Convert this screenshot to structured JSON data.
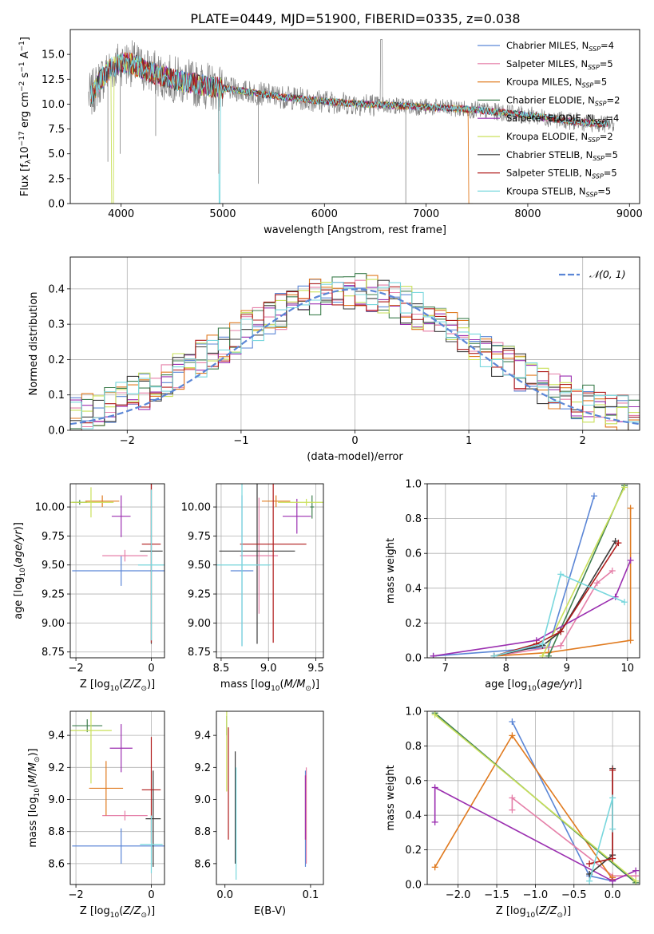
{
  "figure": {
    "title": "PLATE=0449, MJD=51900, FIBERID=0335, z=0.038"
  },
  "models": [
    {
      "name": "Chabrier MILES",
      "nssp": "4",
      "color": "#5b86d6"
    },
    {
      "name": "Salpeter MILES",
      "nssp": "5",
      "color": "#e57fa8"
    },
    {
      "name": "Kroupa MILES",
      "nssp": "5",
      "color": "#e07a1f"
    },
    {
      "name": "Chabrier ELODIE",
      "nssp": "2",
      "color": "#3f7f4f"
    },
    {
      "name": "Salpeter ELODIE",
      "nssp": "4",
      "color": "#9b2fb0"
    },
    {
      "name": "Kroupa ELODIE",
      "nssp": "2",
      "color": "#c9e05a"
    },
    {
      "name": "Chabrier STELIB",
      "nssp": "5",
      "color": "#3b3b3b"
    },
    {
      "name": "Salpeter STELIB",
      "nssp": "5",
      "color": "#b01c1c"
    },
    {
      "name": "Kroupa STELIB",
      "nssp": "5",
      "color": "#78d7dd"
    }
  ],
  "chart_data": [
    {
      "id": "spectrum",
      "type": "line",
      "xlabel": "wavelength [Angstrom, rest frame]",
      "ylabel_parts": [
        "Flux [f",
        "λ",
        "10",
        "−17",
        " erg cm",
        "−2",
        " s",
        "−1",
        " A",
        "−1",
        "]"
      ],
      "xlim": [
        3500,
        9100
      ],
      "ylim": [
        0,
        17.5
      ],
      "xticks": [
        4000,
        5000,
        6000,
        7000,
        8000,
        9000
      ],
      "yticks": [
        0.0,
        2.5,
        5.0,
        7.5,
        10.0,
        12.5,
        15.0
      ],
      "grid": false,
      "legend_position": "upper right",
      "continuum_x": [
        3700,
        3800,
        3900,
        4000,
        4100,
        4200,
        4400,
        4600,
        4800,
        5000,
        5200,
        5400,
        5600,
        5800,
        6000,
        6200,
        6400,
        6600,
        6800,
        7000,
        7200,
        7400,
        7600,
        7800,
        8000,
        8200,
        8400,
        8600,
        8800
      ],
      "continuum_y": [
        10.8,
        12.5,
        13.6,
        14.2,
        14.1,
        13.6,
        12.8,
        12.3,
        11.9,
        11.6,
        11.3,
        11.0,
        10.7,
        10.5,
        10.3,
        10.1,
        10.0,
        9.9,
        9.8,
        9.7,
        9.6,
        9.5,
        9.3,
        9.1,
        8.9,
        8.6,
        8.3,
        8.1,
        8.0
      ]
    },
    {
      "id": "residuals",
      "type": "histogram",
      "xlabel": "(data-model)/error",
      "ylabel": "Normed distribution",
      "xlim": [
        -2.5,
        2.5
      ],
      "ylim": [
        0,
        0.49
      ],
      "xticks": [
        -2,
        -1,
        0,
        1,
        2
      ],
      "yticks": [
        0.0,
        0.1,
        0.2,
        0.3,
        0.4
      ],
      "grid": true,
      "legend_label": "𝒩(0, 1)",
      "legend_position": "upper right",
      "reference_curve": "standard normal"
    },
    {
      "id": "age-vs-Z",
      "type": "errorbar",
      "xlabel": "Z [log10(Z/Z⊙)]",
      "ylabel": "age  [log10(age/yr)]",
      "xlim": [
        -2.15,
        0.35
      ],
      "ylim": [
        8.7,
        10.2
      ],
      "xticks": [
        -2,
        0
      ],
      "yticks": [
        8.75,
        9.0,
        9.25,
        9.5,
        9.75,
        10.0
      ],
      "grid": true,
      "points": [
        {
          "model": 0,
          "x": -0.8,
          "y": 9.45,
          "xerr": 1.3,
          "yerr": 0.13
        },
        {
          "model": 1,
          "x": -0.7,
          "y": 9.58,
          "xerr": 0.6,
          "yerr": 0.05
        },
        {
          "model": 2,
          "x": -1.3,
          "y": 10.05,
          "xerr": 0.45,
          "yerr": 0.05
        },
        {
          "model": 3,
          "x": -1.9,
          "y": 10.04,
          "xerr": 0.2,
          "yerr": 0.02
        },
        {
          "model": 4,
          "x": -0.8,
          "y": 9.92,
          "xerr": 0.25,
          "yerr": 0.18
        },
        {
          "model": 5,
          "x": -1.6,
          "y": 10.04,
          "xerr": 0.6,
          "yerr": 0.13
        },
        {
          "model": 6,
          "x": 0.0,
          "y": 9.62,
          "xerr": 0.3,
          "yerr": 0.8
        },
        {
          "model": 7,
          "x": 0.0,
          "y": 9.68,
          "xerr": 0.25,
          "yerr": 0.85
        },
        {
          "model": 8,
          "x": 0.0,
          "y": 9.5,
          "xerr": 0.35,
          "yerr": 0.65
        }
      ]
    },
    {
      "id": "age-vs-mass",
      "type": "errorbar",
      "xlabel": "mass [log10(M/M⊙)]",
      "xlim": [
        8.45,
        9.58
      ],
      "ylim": [
        8.7,
        10.2
      ],
      "xticks": [
        8.5,
        9.0,
        9.5
      ],
      "yticks": [
        8.75,
        9.0,
        9.25,
        9.5,
        9.75,
        10.0
      ],
      "grid": true,
      "points": [
        {
          "model": 0,
          "x": 8.72,
          "y": 9.45,
          "xerr": 0.12,
          "yerr": 0.65
        },
        {
          "model": 1,
          "x": 8.9,
          "y": 9.58,
          "xerr": 0.2,
          "yerr": 0.5
        },
        {
          "model": 2,
          "x": 9.08,
          "y": 10.05,
          "xerr": 0.15,
          "yerr": 0.05
        },
        {
          "model": 3,
          "x": 9.46,
          "y": 10.0,
          "xerr": 0.02,
          "yerr": 0.1
        },
        {
          "model": 4,
          "x": 9.3,
          "y": 9.92,
          "xerr": 0.15,
          "yerr": 0.15
        },
        {
          "model": 5,
          "x": 9.4,
          "y": 10.04,
          "xerr": 0.3,
          "yerr": 0.03
        },
        {
          "model": 6,
          "x": 8.88,
          "y": 9.62,
          "xerr": 0.4,
          "yerr": 0.8
        },
        {
          "model": 7,
          "x": 9.05,
          "y": 9.68,
          "xerr": 0.35,
          "yerr": 0.85
        },
        {
          "model": 8,
          "x": 8.72,
          "y": 9.5,
          "xerr": 0.3,
          "yerr": 0.7
        }
      ]
    },
    {
      "id": "weight-vs-age",
      "type": "line",
      "xlabel": "age  [log10(age/yr)]",
      "ylabel": "mass weight",
      "xlim": [
        6.7,
        10.2
      ],
      "ylim": [
        0,
        1.0
      ],
      "xticks": [
        7,
        8,
        9,
        10
      ],
      "yticks": [
        0.0,
        0.2,
        0.4,
        0.6,
        0.8,
        1.0
      ],
      "grid": true,
      "series": [
        {
          "model": 0,
          "x": [
            6.8,
            8.7,
            9.45
          ],
          "y": [
            0.01,
            0.06,
            0.93
          ]
        },
        {
          "model": 1,
          "x": [
            7.8,
            8.9,
            9.5,
            9.75
          ],
          "y": [
            0.01,
            0.07,
            0.43,
            0.5
          ]
        },
        {
          "model": 2,
          "x": [
            7.8,
            8.7,
            10.05,
            10.05
          ],
          "y": [
            0.01,
            0.03,
            0.1,
            0.86
          ]
        },
        {
          "model": 3,
          "x": [
            8.7,
            9.95
          ],
          "y": [
            0.01,
            0.99
          ]
        },
        {
          "model": 4,
          "x": [
            6.8,
            8.5,
            9.8,
            10.05
          ],
          "y": [
            0.01,
            0.1,
            0.35,
            0.56
          ]
        },
        {
          "model": 5,
          "x": [
            8.6,
            9.95
          ],
          "y": [
            0.01,
            0.98
          ]
        },
        {
          "model": 6,
          "x": [
            7.8,
            8.6,
            8.9,
            9.8
          ],
          "y": [
            0.01,
            0.07,
            0.15,
            0.67
          ]
        },
        {
          "model": 7,
          "x": [
            7.8,
            8.5,
            8.9,
            9.85
          ],
          "y": [
            0.01,
            0.08,
            0.15,
            0.66
          ]
        },
        {
          "model": 8,
          "x": [
            7.8,
            8.6,
            8.9,
            9.95
          ],
          "y": [
            0.01,
            0.08,
            0.48,
            0.32
          ]
        }
      ]
    },
    {
      "id": "mass-vs-Z",
      "type": "errorbar",
      "xlabel": "Z [log10(Z/Z⊙)]",
      "ylabel": "mass [log10(M/M⊙)]",
      "xlim": [
        -2.15,
        0.35
      ],
      "ylim": [
        8.47,
        9.55
      ],
      "xticks": [
        -2,
        0
      ],
      "yticks": [
        8.6,
        8.8,
        9.0,
        9.2,
        9.4
      ],
      "grid": true,
      "points": [
        {
          "model": 0,
          "x": -0.8,
          "y": 8.71,
          "xerr": 1.3,
          "yerr": 0.11
        },
        {
          "model": 1,
          "x": -0.7,
          "y": 8.9,
          "xerr": 0.6,
          "yerr": 0.03
        },
        {
          "model": 2,
          "x": -1.2,
          "y": 9.07,
          "xerr": 0.45,
          "yerr": 0.17
        },
        {
          "model": 3,
          "x": -1.7,
          "y": 9.46,
          "xerr": 0.4,
          "yerr": 0.04
        },
        {
          "model": 4,
          "x": -0.8,
          "y": 9.32,
          "xerr": 0.3,
          "yerr": 0.15
        },
        {
          "model": 5,
          "x": -1.6,
          "y": 9.43,
          "xerr": 0.55,
          "yerr": 0.33
        },
        {
          "model": 6,
          "x": 0.05,
          "y": 8.88,
          "xerr": 0.2,
          "yerr": 0.3
        },
        {
          "model": 7,
          "x": 0.0,
          "y": 9.06,
          "xerr": 0.25,
          "yerr": 0.33
        },
        {
          "model": 8,
          "x": 0.0,
          "y": 8.72,
          "xerr": 0.3,
          "yerr": 0.18
        }
      ]
    },
    {
      "id": "mass-vs-ebv",
      "type": "errorbar",
      "xlabel": "E(B-V)",
      "xlim": [
        -0.01,
        0.115
      ],
      "ylim": [
        8.47,
        9.55
      ],
      "xticks": [
        0.0,
        0.1
      ],
      "yticks": [
        8.6,
        8.8,
        9.0,
        9.2,
        9.4
      ],
      "grid": false,
      "points": [
        {
          "model": 0,
          "x": 0.094,
          "y": 8.88,
          "xerr": 0.0,
          "yerr": 0.3
        },
        {
          "model": 1,
          "x": 0.095,
          "y": 8.9,
          "xerr": 0.0,
          "yerr": 0.3
        },
        {
          "model": 2,
          "x": 0.094,
          "y": 8.95,
          "xerr": 0.0,
          "yerr": 0.2
        },
        {
          "model": 3,
          "x": 0.002,
          "y": 9.46,
          "xerr": 0.0,
          "yerr": 0.06
        },
        {
          "model": 4,
          "x": 0.094,
          "y": 8.95,
          "xerr": 0.0,
          "yerr": 0.2
        },
        {
          "model": 5,
          "x": 0.002,
          "y": 9.3,
          "xerr": 0.0,
          "yerr": 0.25
        },
        {
          "model": 6,
          "x": 0.012,
          "y": 8.95,
          "xerr": 0.0,
          "yerr": 0.35
        },
        {
          "model": 7,
          "x": 0.004,
          "y": 9.1,
          "xerr": 0.0,
          "yerr": 0.35
        },
        {
          "model": 8,
          "x": 0.013,
          "y": 8.85,
          "xerr": 0.0,
          "yerr": 0.35
        }
      ]
    },
    {
      "id": "weight-vs-Z",
      "type": "line",
      "xlabel": "Z [log10(Z/Z⊙)]",
      "ylabel": "mass weight",
      "xlim": [
        -2.4,
        0.35
      ],
      "ylim": [
        0,
        1.0
      ],
      "xticks": [
        -2.0,
        -1.5,
        -1.0,
        -0.5,
        0.0
      ],
      "yticks": [
        0.0,
        0.2,
        0.4,
        0.6,
        0.8,
        1.0
      ],
      "grid": true,
      "series": [
        {
          "model": 0,
          "x": [
            -1.3,
            -0.3,
            0.0
          ],
          "y": [
            0.94,
            0.05,
            0.02
          ]
        },
        {
          "model": 1,
          "x": [
            -1.3,
            -1.3,
            0.0,
            0.3
          ],
          "y": [
            0.43,
            0.5,
            0.05,
            0.05
          ]
        },
        {
          "model": 2,
          "x": [
            -2.3,
            -1.3,
            0.0,
            0.0
          ],
          "y": [
            0.1,
            0.86,
            0.03,
            0.04
          ]
        },
        {
          "model": 3,
          "x": [
            -2.3,
            0.3
          ],
          "y": [
            0.99,
            0.01
          ]
        },
        {
          "model": 4,
          "x": [
            -2.3,
            -2.3,
            0.0,
            0.3
          ],
          "y": [
            0.36,
            0.56,
            0.02,
            0.08
          ]
        },
        {
          "model": 5,
          "x": [
            -2.3,
            0.3
          ],
          "y": [
            0.98,
            0.02
          ]
        },
        {
          "model": 6,
          "x": [
            -0.3,
            0.0,
            0.0
          ],
          "y": [
            0.06,
            0.17,
            0.67
          ]
        },
        {
          "model": 7,
          "x": [
            -0.3,
            0.0,
            0.0
          ],
          "y": [
            0.12,
            0.15,
            0.66
          ]
        },
        {
          "model": 8,
          "x": [
            -0.3,
            0.0,
            0.0
          ],
          "y": [
            0.02,
            0.5,
            0.32
          ]
        }
      ]
    }
  ]
}
